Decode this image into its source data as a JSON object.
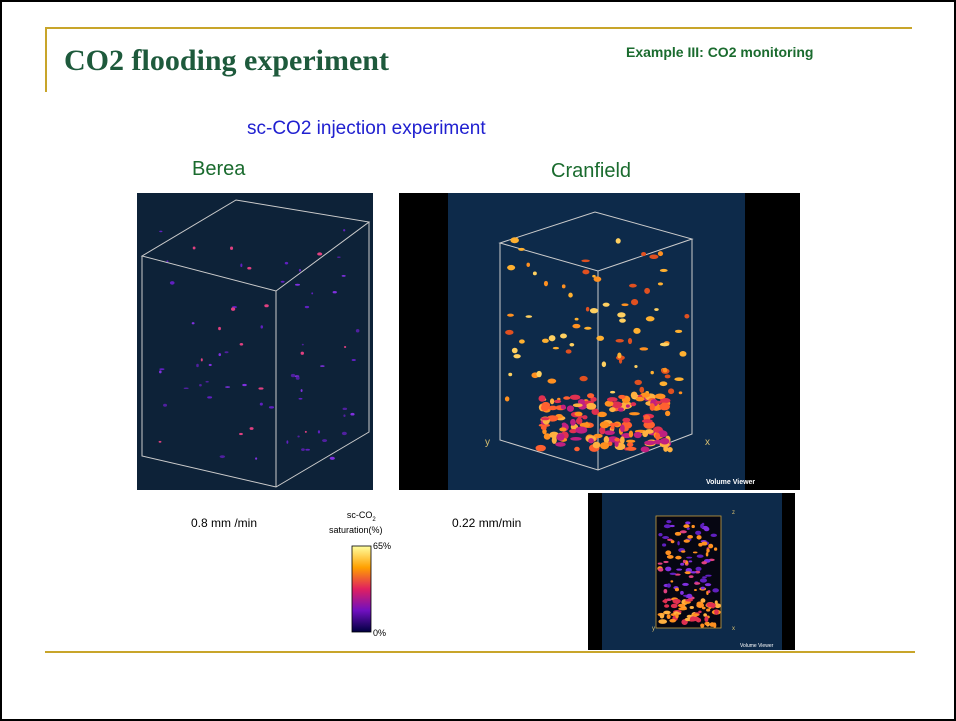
{
  "header": {
    "title": "CO2 flooding experiment",
    "tag": "Example III: CO2 monitoring"
  },
  "section": {
    "heading": "sc-CO2 injection experiment"
  },
  "panels": [
    {
      "label": "Berea",
      "rate": "0.8 mm /min"
    },
    {
      "label": "Cranfield",
      "rate": "0.22 mm/min",
      "axis_y": "y",
      "axis_x": "x",
      "viewer": "Volume Viewer"
    }
  ],
  "colorbar": {
    "title_main": "sc-CO",
    "title_sub": "2",
    "title_unit": "saturation(%)",
    "max_label": "65%",
    "min_label": "0%"
  },
  "inset": {
    "axis_z": "z",
    "axis_y": "y",
    "axis_x": "x",
    "viewer": "Volume Viewer"
  }
}
